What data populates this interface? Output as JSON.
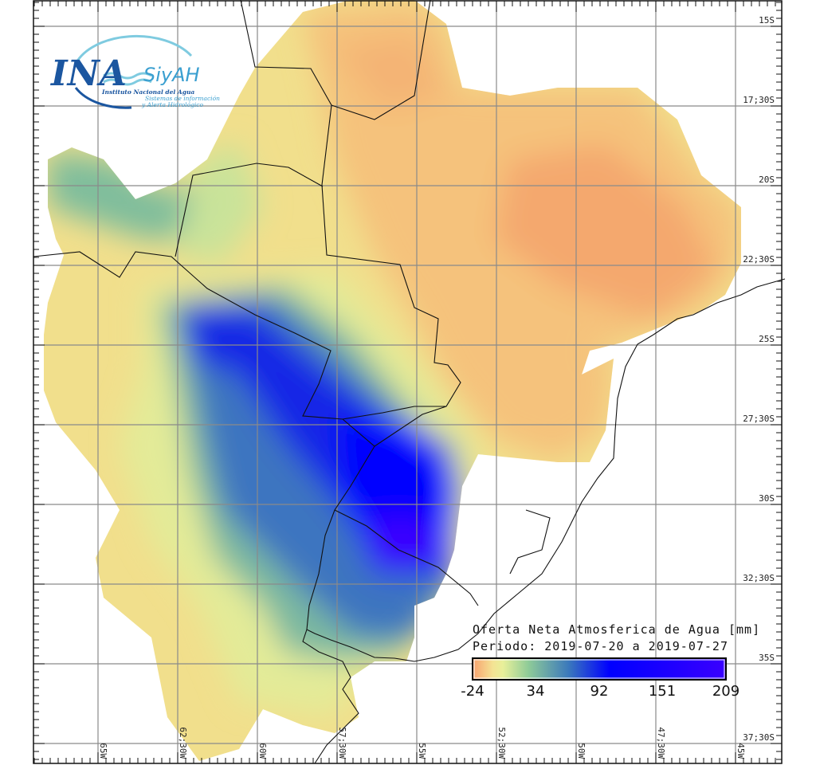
{
  "logo": {
    "acronym": "INA",
    "system": "SiyAH",
    "institute": "Instituto Nacional del Agua",
    "subtitle_line1": "Sistemas de información",
    "subtitle_line2": "y Alerta Hidrológico"
  },
  "legend": {
    "title": "Oferta Neta Atmosferica de Agua [mm]",
    "period": "Periodo: 2019-07-20 a 2019-07-27",
    "ticks": [
      "-24",
      "34",
      "92",
      "151",
      "209"
    ],
    "range": [
      -24,
      209
    ],
    "colors": [
      "#f8a06e",
      "#f4e394",
      "#e8f09a",
      "#8fcb98",
      "#3a78bc",
      "#0000ff",
      "#3a00ff"
    ]
  },
  "axes": {
    "lat_labels": [
      "15S",
      "17;30S",
      "20S",
      "22;30S",
      "25S",
      "27;30S",
      "30S",
      "32;30S",
      "35S",
      "37;30S"
    ],
    "lon_labels": [
      "65W",
      "62;30W",
      "60W",
      "57;30W",
      "55W",
      "52;30W",
      "50W",
      "47;30W",
      "45W"
    ]
  }
}
